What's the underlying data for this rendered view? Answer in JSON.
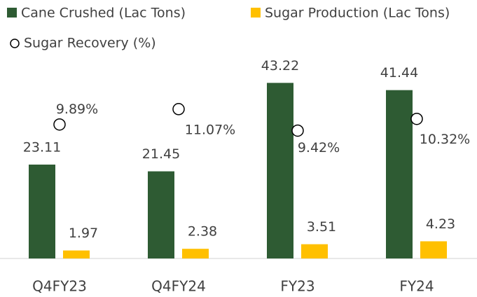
{
  "chart_data": {
    "type": "bar",
    "categories": [
      "Q4FY23",
      "Q4FY24",
      "FY23",
      "FY24"
    ],
    "series": [
      {
        "name": "Cane Crushed (Lac Tons)",
        "color": "#2e5b33",
        "values": [
          23.11,
          21.45,
          43.22,
          41.44
        ]
      },
      {
        "name": "Sugar Production (Lac Tons)",
        "color": "#ffc000",
        "values": [
          1.97,
          2.38,
          3.51,
          4.23
        ]
      },
      {
        "name": "Sugar Recovery (%)",
        "type": "scatter",
        "axis": "y2",
        "color": "#000000",
        "values": [
          9.89,
          11.07,
          9.42,
          10.32
        ],
        "value_labels": [
          "9.89%",
          "11.07%",
          "9.42%",
          "10.32%"
        ]
      }
    ],
    "ylim": [
      0,
      50
    ],
    "y2lim": [
      -0.4,
      15.2
    ]
  }
}
